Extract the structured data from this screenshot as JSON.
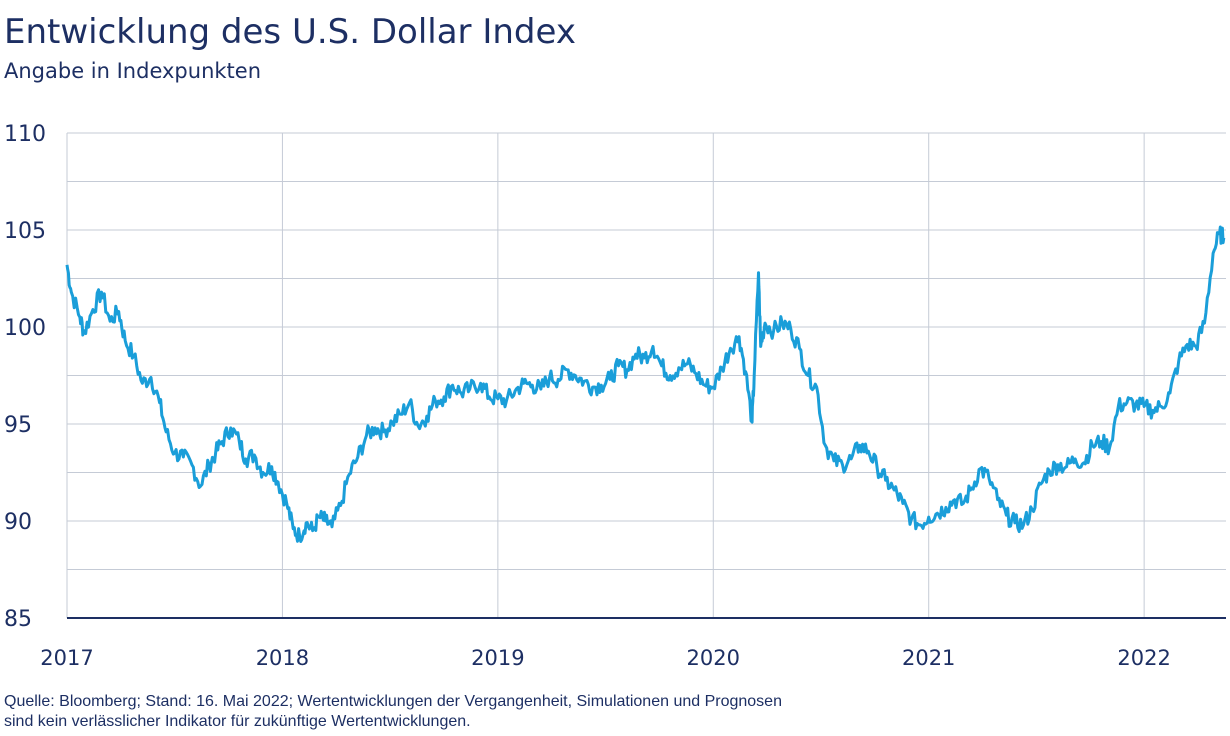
{
  "title": "Entwicklung des U.S. Dollar Index",
  "subtitle": "Angabe in Indexpunkten",
  "footnote": {
    "line1": "Quelle: Bloomberg; Stand: 16. Mai 2022; Wertentwicklungen der Vergangenheit, Simulationen und Prognosen",
    "line2": "sind kein verlässlicher Indikator für zukünftige Wertentwicklungen."
  },
  "colors": {
    "line": "#1a9ed9",
    "text": "#1d2f63",
    "grid": "#c5cbd6",
    "axis": "#1d2f63"
  },
  "chart_data": {
    "type": "line",
    "title": "Entwicklung des U.S. Dollar Index",
    "subtitle": "Angabe in Indexpunkten",
    "xlabel": "",
    "ylabel": "",
    "ylim": [
      85,
      110
    ],
    "xlim": [
      2017.0,
      2022.38
    ],
    "yticks": [
      "110",
      "105",
      "100",
      "95",
      "90",
      "85"
    ],
    "xticks": [
      "2017",
      "2018",
      "2019",
      "2020",
      "2021",
      "2022"
    ],
    "grid": true,
    "series": [
      {
        "x": [
          2017.0,
          2017.02,
          2017.06,
          2017.08,
          2017.12,
          2017.16,
          2017.2,
          2017.24,
          2017.27,
          2017.31,
          2017.35,
          2017.39,
          2017.43,
          2017.46,
          2017.5,
          2017.54,
          2017.58,
          2017.62,
          2017.66,
          2017.69,
          2017.72,
          2017.76,
          2017.8,
          2017.83,
          2017.87,
          2017.91,
          2017.95,
          2017.98,
          2018.02,
          2018.05,
          2018.08,
          2018.11,
          2018.14,
          2018.17,
          2018.2,
          2018.23,
          2018.27,
          2018.31,
          2018.35,
          2018.39,
          2018.43,
          2018.47,
          2018.51,
          2018.55,
          2018.59,
          2018.63,
          2018.67,
          2018.71,
          2018.75,
          2018.79,
          2018.83,
          2018.87,
          2018.92,
          2018.96,
          2019.0,
          2019.04,
          2019.08,
          2019.12,
          2019.16,
          2019.2,
          2019.24,
          2019.28,
          2019.32,
          2019.36,
          2019.4,
          2019.44,
          2019.48,
          2019.52,
          2019.56,
          2019.6,
          2019.64,
          2019.68,
          2019.72,
          2019.76,
          2019.8,
          2019.84,
          2019.88,
          2019.92,
          2019.96,
          2020.0,
          2020.04,
          2020.08,
          2020.12,
          2020.15,
          2020.18,
          2020.19,
          2020.21,
          2020.22,
          2020.24,
          2020.28,
          2020.32,
          2020.36,
          2020.4,
          2020.44,
          2020.48,
          2020.52,
          2020.56,
          2020.6,
          2020.64,
          2020.68,
          2020.72,
          2020.76,
          2020.8,
          2020.84,
          2020.88,
          2020.92,
          2020.96,
          2021.0,
          2021.04,
          2021.08,
          2021.12,
          2021.16,
          2021.2,
          2021.24,
          2021.28,
          2021.32,
          2021.36,
          2021.4,
          2021.44,
          2021.48,
          2021.52,
          2021.56,
          2021.6,
          2021.64,
          2021.68,
          2021.72,
          2021.76,
          2021.8,
          2021.84,
          2021.88,
          2021.92,
          2021.96,
          2022.0,
          2022.04,
          2022.08,
          2022.12,
          2022.16,
          2022.2,
          2022.24,
          2022.28,
          2022.32,
          2022.35,
          2022.37
        ],
        "values": [
          103.2,
          101.8,
          100.5,
          99.7,
          100.9,
          101.8,
          100.3,
          100.8,
          99.3,
          98.5,
          97.1,
          97.4,
          96.1,
          94.6,
          93.5,
          93.3,
          92.9,
          91.8,
          92.9,
          93.5,
          94.1,
          94.8,
          94.1,
          93.2,
          93.4,
          92.5,
          92.8,
          92.0,
          90.9,
          89.6,
          89.2,
          89.9,
          89.5,
          90.2,
          90.0,
          89.7,
          90.8,
          92.4,
          93.3,
          94.4,
          94.8,
          94.6,
          95.1,
          95.5,
          96.1,
          94.9,
          95.4,
          96.2,
          96.4,
          97.0,
          96.6,
          96.8,
          97.1,
          96.4,
          96.3,
          96.2,
          96.7,
          97.1,
          97.0,
          96.8,
          97.4,
          97.3,
          97.8,
          97.5,
          97.2,
          96.9,
          97.0,
          97.3,
          98.0,
          97.8,
          98.6,
          98.4,
          99.0,
          98.0,
          97.5,
          97.9,
          98.1,
          97.6,
          97.0,
          96.9,
          97.9,
          98.9,
          99.5,
          97.7,
          95.1,
          97.5,
          102.8,
          99.0,
          100.2,
          99.8,
          100.2,
          99.9,
          98.9,
          97.5,
          96.9,
          93.9,
          93.1,
          92.9,
          93.2,
          93.9,
          93.6,
          92.8,
          92.1,
          91.6,
          90.9,
          90.1,
          89.8,
          90.2,
          90.4,
          90.7,
          91.1,
          90.9,
          91.7,
          92.7,
          92.2,
          91.1,
          90.3,
          89.9,
          89.8,
          90.6,
          91.9,
          92.6,
          92.9,
          92.8,
          93.2,
          93.0,
          93.9,
          94.1,
          93.8,
          95.9,
          96.1,
          96.0,
          95.9,
          95.7,
          95.9,
          96.6,
          98.2,
          99.1,
          99.0,
          100.2,
          103.8,
          104.8,
          104.6
        ]
      }
    ]
  }
}
